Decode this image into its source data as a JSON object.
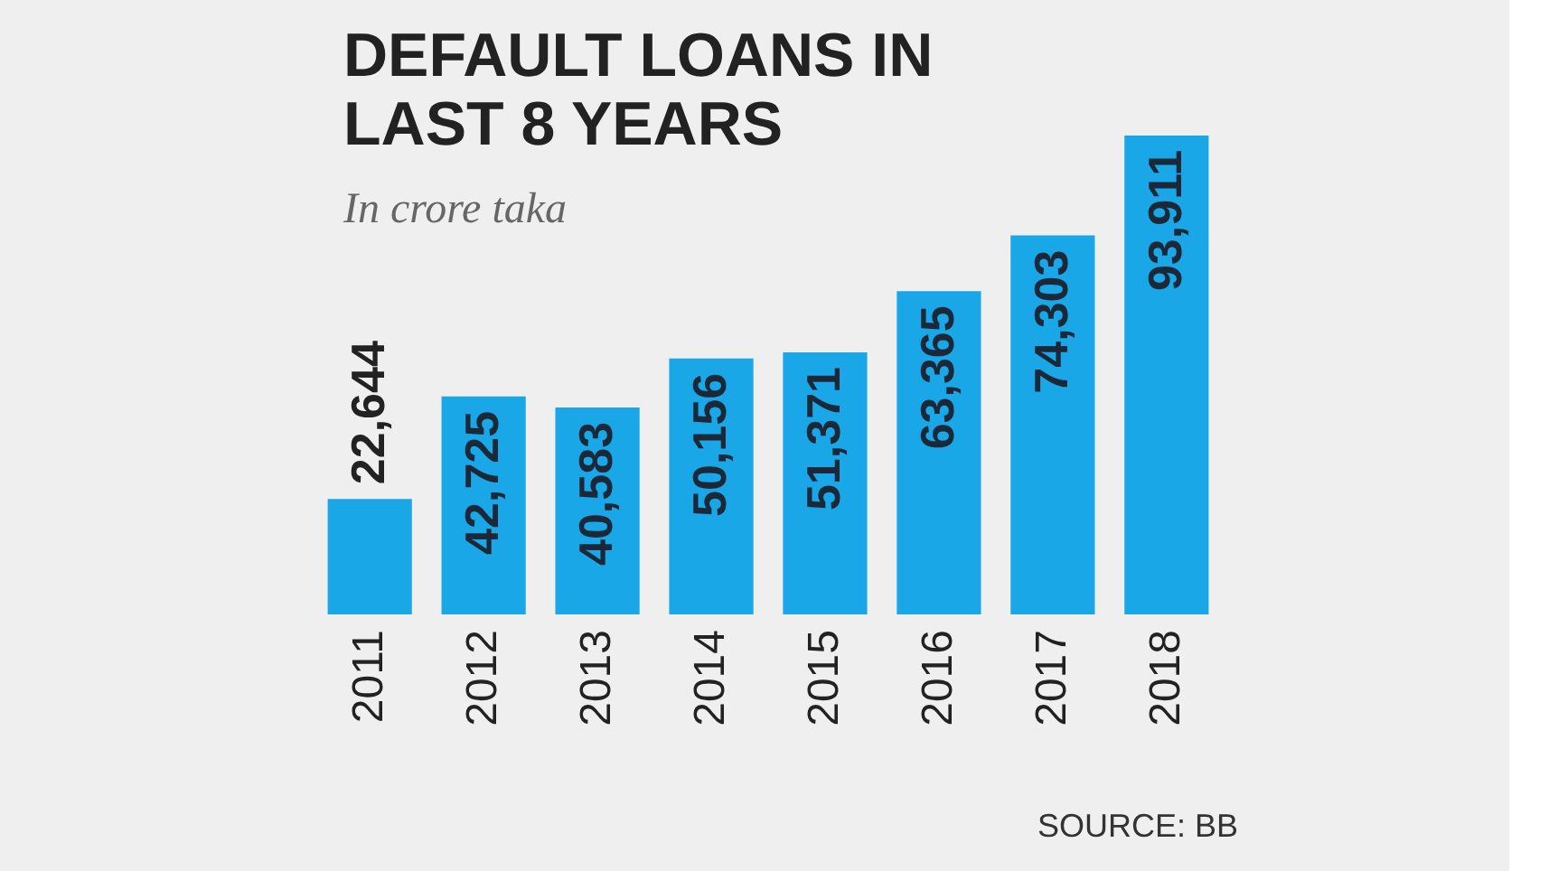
{
  "chart_data": {
    "type": "bar",
    "title": [
      "DEFAULT LOANS IN",
      "LAST 8 YEARS"
    ],
    "subtitle": "In crore taka",
    "categories": [
      "2011",
      "2012",
      "2013",
      "2014",
      "2015",
      "2016",
      "2017",
      "2018"
    ],
    "values": [
      22644,
      42725,
      40583,
      50156,
      51371,
      63365,
      74303,
      93911
    ],
    "value_labels": [
      "22,644",
      "42,725",
      "40,583",
      "50,156",
      "51,371",
      "63,365",
      "74,303",
      "93,911"
    ],
    "color": "#1aa7e8",
    "annotations": [
      "SOURCE: BB"
    ]
  }
}
